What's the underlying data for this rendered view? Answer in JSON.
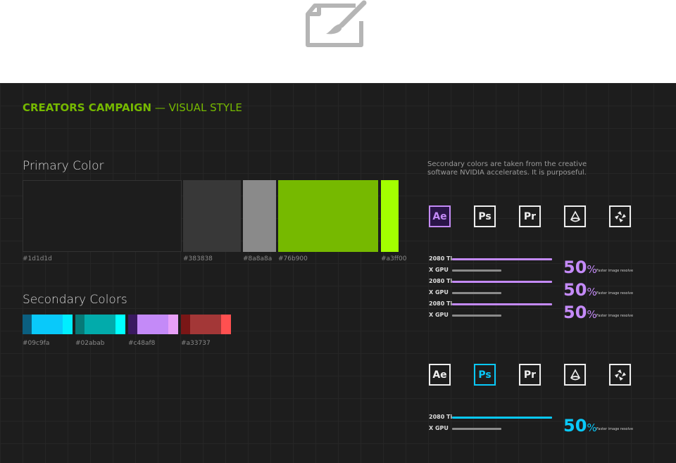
{
  "header_icon": "paint-brush-canvas-icon",
  "title": {
    "bold": "CREATORS CAMPAIGN",
    "light": "— VISUAL STYLE"
  },
  "primary": {
    "heading": "Primary Color",
    "swatches": [
      {
        "hex": "#1d1d1d"
      },
      {
        "hex": "#383838"
      },
      {
        "hex": "#8a8a8a"
      },
      {
        "hex": "#76b900"
      },
      {
        "hex": "#a3ff00"
      }
    ]
  },
  "secondary": {
    "heading": "Secondary Colors",
    "swatches": [
      {
        "hex": "#09c9fa",
        "shades": [
          "#0b5f80",
          "#09c9fa",
          "#00eeff"
        ]
      },
      {
        "hex": "#02abab",
        "shades": [
          "#067a78",
          "#02abab",
          "#00ffff"
        ]
      },
      {
        "hex": "#c48af8",
        "shades": [
          "#3a1a60",
          "#c48af8",
          "#e8a0f8"
        ]
      },
      {
        "hex": "#a33737",
        "shades": [
          "#7a1616",
          "#a33737",
          "#ff5050"
        ]
      }
    ]
  },
  "description": "Secondary colors are taken from the creative software NVIDIA accelerates. It is purposeful.",
  "apps": [
    "Ae",
    "Ps",
    "Pr",
    "cone-icon",
    "shutter-icon"
  ],
  "section1": {
    "accent": "#c48af8",
    "active": 0,
    "rows": [
      {
        "a": "2080 Ti",
        "b": "X GPU",
        "value": "50",
        "unit": "%",
        "note": "Faster image resolve"
      },
      {
        "a": "2080 Ti",
        "b": "X GPU",
        "value": "50",
        "unit": "%",
        "note": "Faster image resolve"
      },
      {
        "a": "2080 Ti",
        "b": "X GPU",
        "value": "50",
        "unit": "%",
        "note": "Faster image resolve"
      }
    ]
  },
  "section2": {
    "accent": "#09c9fa",
    "active": 1,
    "rows": [
      {
        "a": "2080 Ti",
        "b": "X GPU",
        "value": "50",
        "unit": "%",
        "note": "Faster image resolve"
      }
    ]
  }
}
